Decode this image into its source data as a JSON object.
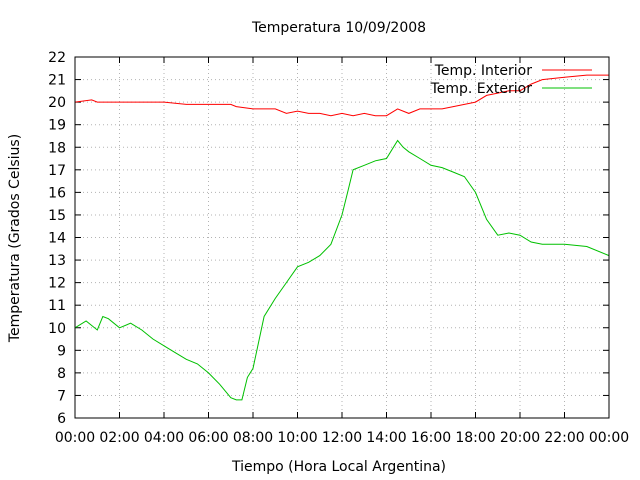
{
  "chart_data": {
    "type": "line",
    "title": "Temperatura 10/09/2008",
    "xlabel": "Tiempo (Hora Local Argentina)",
    "ylabel": "Temperatura (Grados Celsius)",
    "xlim": [
      "00:00",
      "24:00"
    ],
    "ylim": [
      6,
      22
    ],
    "x_ticks": [
      "00:00",
      "02:00",
      "04:00",
      "06:00",
      "08:00",
      "10:00",
      "12:00",
      "14:00",
      "16:00",
      "18:00",
      "20:00",
      "22:00",
      "00:00"
    ],
    "y_ticks": [
      6,
      7,
      8,
      9,
      10,
      11,
      12,
      13,
      14,
      15,
      16,
      17,
      18,
      19,
      20,
      21,
      22
    ],
    "grid": true,
    "legend_position": "top-right",
    "series": [
      {
        "name": "Temp. Interior",
        "color": "#ff0000",
        "x": [
          "00:00",
          "00:45",
          "01:00",
          "02:00",
          "03:00",
          "04:00",
          "05:00",
          "06:00",
          "07:00",
          "07:15",
          "08:00",
          "09:00",
          "09:30",
          "10:00",
          "10:30",
          "11:00",
          "11:30",
          "12:00",
          "12:30",
          "13:00",
          "13:30",
          "14:00",
          "14:30",
          "15:00",
          "15:30",
          "16:00",
          "16:30",
          "17:00",
          "17:30",
          "18:00",
          "18:30",
          "19:00",
          "19:30",
          "20:00",
          "20:30",
          "21:00",
          "22:00",
          "23:00",
          "24:00"
        ],
        "values": [
          20.0,
          20.1,
          20.0,
          20.0,
          20.0,
          20.0,
          19.9,
          19.9,
          19.9,
          19.8,
          19.7,
          19.7,
          19.5,
          19.6,
          19.5,
          19.5,
          19.4,
          19.5,
          19.4,
          19.5,
          19.4,
          19.4,
          19.7,
          19.5,
          19.7,
          19.7,
          19.7,
          19.8,
          19.9,
          20.0,
          20.3,
          20.4,
          20.5,
          20.5,
          20.8,
          21.0,
          21.1,
          21.2,
          21.2
        ]
      },
      {
        "name": "Temp. Exterior",
        "color": "#00c000",
        "x": [
          "00:00",
          "00:30",
          "01:00",
          "01:15",
          "01:30",
          "02:00",
          "02:30",
          "03:00",
          "03:30",
          "04:00",
          "04:30",
          "05:00",
          "05:30",
          "06:00",
          "06:30",
          "07:00",
          "07:15",
          "07:30",
          "07:45",
          "08:00",
          "08:30",
          "09:00",
          "09:30",
          "10:00",
          "10:30",
          "11:00",
          "11:30",
          "12:00",
          "12:15",
          "12:30",
          "13:00",
          "13:30",
          "14:00",
          "14:30",
          "14:45",
          "15:00",
          "15:30",
          "16:00",
          "16:30",
          "17:00",
          "17:30",
          "18:00",
          "18:30",
          "19:00",
          "19:30",
          "20:00",
          "20:30",
          "21:00",
          "22:00",
          "23:00",
          "24:00"
        ],
        "values": [
          10.0,
          10.3,
          9.9,
          10.5,
          10.4,
          10.0,
          10.2,
          9.9,
          9.5,
          9.2,
          8.9,
          8.6,
          8.4,
          8.0,
          7.5,
          6.9,
          6.8,
          6.8,
          7.8,
          8.2,
          10.5,
          11.3,
          12.0,
          12.7,
          12.9,
          13.2,
          13.7,
          15.0,
          16.0,
          17.0,
          17.2,
          17.4,
          17.5,
          18.3,
          18.0,
          17.8,
          17.5,
          17.2,
          17.1,
          16.9,
          16.7,
          16.0,
          14.8,
          14.1,
          14.2,
          14.1,
          13.8,
          13.7,
          13.7,
          13.6,
          13.2
        ]
      }
    ]
  }
}
